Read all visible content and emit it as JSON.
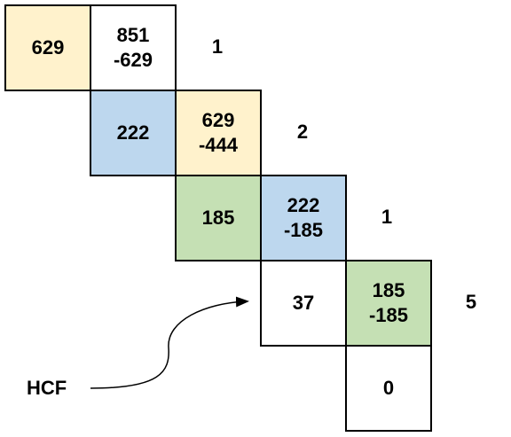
{
  "colors": {
    "orange": "#FFF2CC",
    "blue": "#BDD7EE",
    "green": "#C5E0B4",
    "white": "#FFFFFF",
    "border": "#000000"
  },
  "rows": [
    {
      "remainder": "629",
      "dividend": "851",
      "subtrahend": "-629",
      "quotient": "1"
    },
    {
      "remainder": "222",
      "dividend": "629",
      "subtrahend": "-444",
      "quotient": "2"
    },
    {
      "remainder": "185",
      "dividend": "222",
      "subtrahend": "-185",
      "quotient": "1"
    },
    {
      "remainder": "37",
      "dividend": "185",
      "subtrahend": "-185",
      "quotient": "5"
    }
  ],
  "final_remainder": "0",
  "hcf_label": "HCF"
}
